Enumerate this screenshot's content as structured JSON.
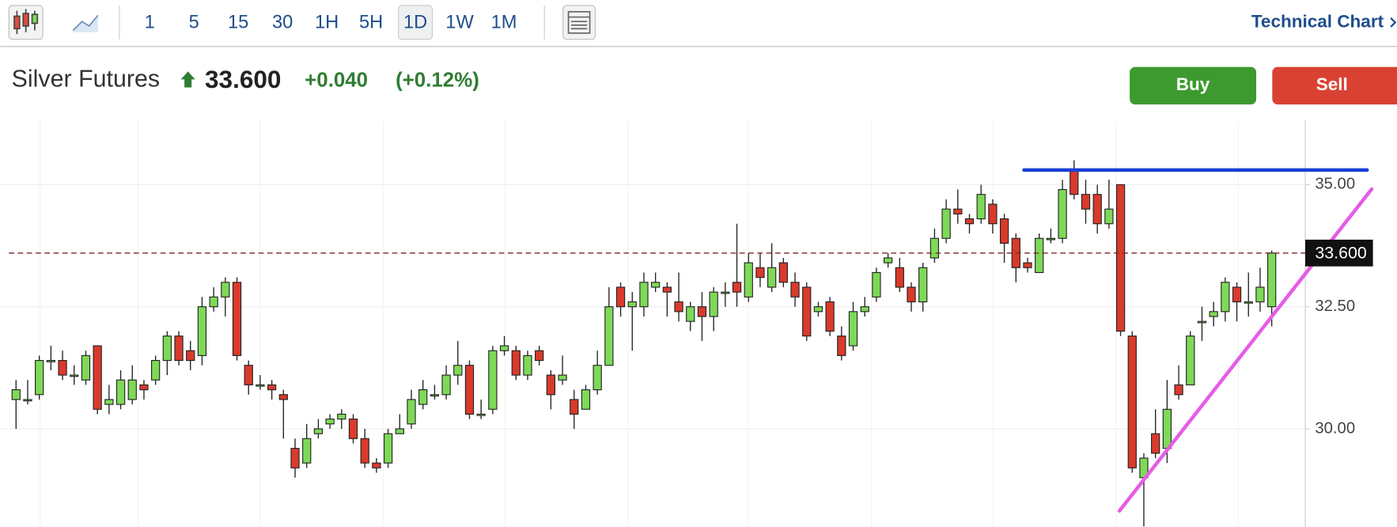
{
  "toolbar": {
    "intervals": [
      "1",
      "5",
      "15",
      "30",
      "1H",
      "5H",
      "1D",
      "1W",
      "1M"
    ],
    "active_interval": "1D",
    "link": "Technical Chart"
  },
  "header": {
    "title": "Silver Futures",
    "change": "+0.040",
    "change_pct": "(+0.12%)"
  },
  "buttons": {
    "buy": "Buy",
    "sell": "Sell"
  },
  "chart_data": {
    "type": "candlestick",
    "up_color": "#7ed957",
    "down_color": "#d93a2b",
    "open": [
      30.6,
      30.6,
      30.7,
      31.4,
      31.4,
      31.1,
      31.0,
      31.7,
      30.5,
      30.5,
      30.6,
      30.9,
      31.0,
      31.4,
      31.9,
      31.6,
      31.5,
      32.5,
      32.7,
      33.0,
      31.3,
      30.9,
      30.9,
      30.7,
      29.6,
      29.3,
      29.9,
      30.1,
      30.2,
      30.2,
      29.8,
      29.3,
      29.3,
      29.9,
      30.1,
      30.5,
      30.7,
      30.7,
      31.1,
      31.3,
      30.3,
      30.4,
      31.6,
      31.6,
      31.1,
      31.6,
      31.1,
      31.0,
      30.6,
      30.4,
      30.8,
      31.3,
      32.9,
      32.5,
      32.5,
      32.9,
      32.9,
      32.6,
      32.2,
      32.5,
      32.3,
      32.8,
      33.0,
      32.7,
      33.3,
      32.9,
      33.4,
      33.0,
      32.9,
      32.4,
      32.6,
      31.9,
      31.7,
      32.4,
      32.7,
      33.4,
      33.3,
      32.9,
      32.6,
      33.5,
      33.9,
      34.5,
      34.3,
      34.3,
      34.6,
      34.3,
      33.9,
      33.4,
      33.2,
      33.9,
      33.9,
      35.3,
      34.8,
      34.8,
      34.2,
      35.0,
      31.9,
      29.0,
      29.9,
      29.6,
      30.9,
      30.9,
      32.2,
      32.3,
      32.4,
      32.9,
      32.6,
      32.6,
      32.5
    ],
    "high": [
      31.0,
      31.0,
      31.5,
      31.7,
      31.6,
      31.3,
      31.6,
      31.7,
      30.9,
      31.2,
      31.3,
      31.0,
      31.5,
      32.0,
      32.0,
      31.8,
      32.7,
      32.9,
      33.1,
      33.1,
      31.4,
      31.1,
      31.0,
      30.8,
      29.8,
      30.1,
      30.2,
      30.3,
      30.4,
      30.3,
      30.0,
      29.4,
      30.0,
      30.3,
      30.8,
      31.0,
      30.9,
      31.3,
      31.8,
      31.4,
      30.6,
      31.7,
      31.9,
      31.7,
      31.6,
      31.7,
      31.2,
      31.5,
      30.8,
      30.9,
      31.6,
      32.9,
      33.0,
      32.8,
      33.2,
      33.2,
      33.0,
      33.2,
      32.6,
      32.8,
      32.9,
      33.0,
      34.2,
      33.6,
      33.6,
      33.8,
      33.5,
      33.2,
      33.0,
      32.6,
      32.7,
      32.1,
      32.6,
      32.7,
      33.3,
      33.6,
      33.5,
      33.0,
      33.4,
      34.1,
      34.7,
      34.9,
      34.4,
      35.0,
      34.7,
      34.4,
      34.0,
      33.5,
      34.0,
      34.1,
      35.1,
      35.5,
      35.1,
      35.0,
      35.1,
      35.0,
      32.0,
      29.5,
      30.4,
      31.0,
      31.3,
      32.0,
      32.5,
      32.6,
      33.1,
      33.0,
      33.2,
      33.3,
      33.65
    ],
    "low": [
      30.0,
      30.5,
      30.6,
      31.2,
      31.0,
      30.9,
      30.9,
      30.3,
      30.3,
      30.4,
      30.5,
      30.6,
      30.9,
      31.1,
      31.3,
      31.2,
      31.3,
      32.4,
      32.3,
      31.4,
      30.7,
      30.8,
      30.6,
      29.8,
      29.0,
      29.2,
      29.8,
      30.0,
      30.0,
      29.7,
      29.2,
      29.1,
      29.2,
      29.9,
      30.0,
      30.4,
      30.6,
      30.6,
      30.9,
      30.2,
      30.2,
      30.3,
      31.5,
      31.0,
      31.0,
      31.3,
      30.4,
      30.9,
      30.0,
      30.4,
      30.7,
      31.3,
      32.3,
      31.6,
      32.3,
      32.8,
      32.3,
      32.2,
      32.0,
      31.8,
      32.0,
      32.5,
      32.5,
      32.6,
      32.9,
      32.8,
      32.9,
      32.5,
      31.8,
      32.3,
      31.9,
      31.4,
      31.6,
      32.3,
      32.6,
      33.3,
      32.8,
      32.4,
      32.4,
      33.4,
      33.8,
      34.2,
      34.0,
      34.2,
      34.0,
      33.4,
      33.0,
      33.2,
      33.2,
      33.8,
      33.8,
      34.7,
      34.2,
      34.0,
      34.1,
      31.9,
      29.1,
      28.0,
      29.4,
      29.3,
      30.6,
      30.9,
      31.8,
      32.1,
      32.2,
      32.2,
      32.3,
      32.4,
      32.1
    ],
    "close": [
      30.8,
      30.6,
      31.4,
      31.4,
      31.1,
      31.1,
      31.5,
      30.4,
      30.6,
      31.0,
      31.0,
      30.8,
      31.4,
      31.9,
      31.4,
      31.4,
      32.5,
      32.7,
      33.0,
      31.5,
      30.9,
      30.9,
      30.8,
      30.6,
      29.2,
      29.8,
      30.0,
      30.2,
      30.3,
      29.8,
      29.3,
      29.2,
      29.9,
      30.0,
      30.6,
      30.8,
      30.7,
      31.1,
      31.3,
      30.3,
      30.3,
      31.6,
      31.7,
      31.1,
      31.5,
      31.4,
      30.7,
      31.1,
      30.3,
      30.8,
      31.3,
      32.5,
      32.5,
      32.6,
      33.0,
      33.0,
      32.8,
      32.4,
      32.5,
      32.3,
      32.8,
      32.8,
      32.8,
      33.4,
      33.1,
      33.3,
      33.0,
      32.7,
      31.9,
      32.5,
      32.0,
      31.5,
      32.4,
      32.5,
      33.2,
      33.5,
      32.9,
      32.6,
      33.3,
      33.9,
      34.5,
      34.4,
      34.2,
      34.8,
      34.2,
      33.8,
      33.3,
      33.3,
      33.9,
      33.9,
      34.9,
      34.8,
      34.5,
      34.2,
      34.5,
      32.0,
      29.2,
      29.4,
      29.5,
      30.4,
      30.7,
      31.9,
      32.2,
      32.4,
      33.0,
      32.6,
      32.6,
      32.9,
      33.6
    ],
    "ylim": [
      28.0,
      36.3
    ],
    "yticks": [
      {
        "value": 30,
        "label": "30.00"
      },
      {
        "value": 32.5,
        "label": "32.50"
      },
      {
        "value": 35,
        "label": "35.00"
      }
    ],
    "grid": true,
    "last_price": {
      "value": 33.6,
      "label": "33.600"
    },
    "trend_lines": [
      {
        "color": "#1a3fd6",
        "from": [
          86.7,
          35.3
        ],
        "to": [
          116.2,
          35.3
        ]
      },
      {
        "color": "#e65ce6",
        "from": [
          94.9,
          28.32
        ],
        "to": [
          116.6,
          34.91
        ]
      }
    ]
  }
}
